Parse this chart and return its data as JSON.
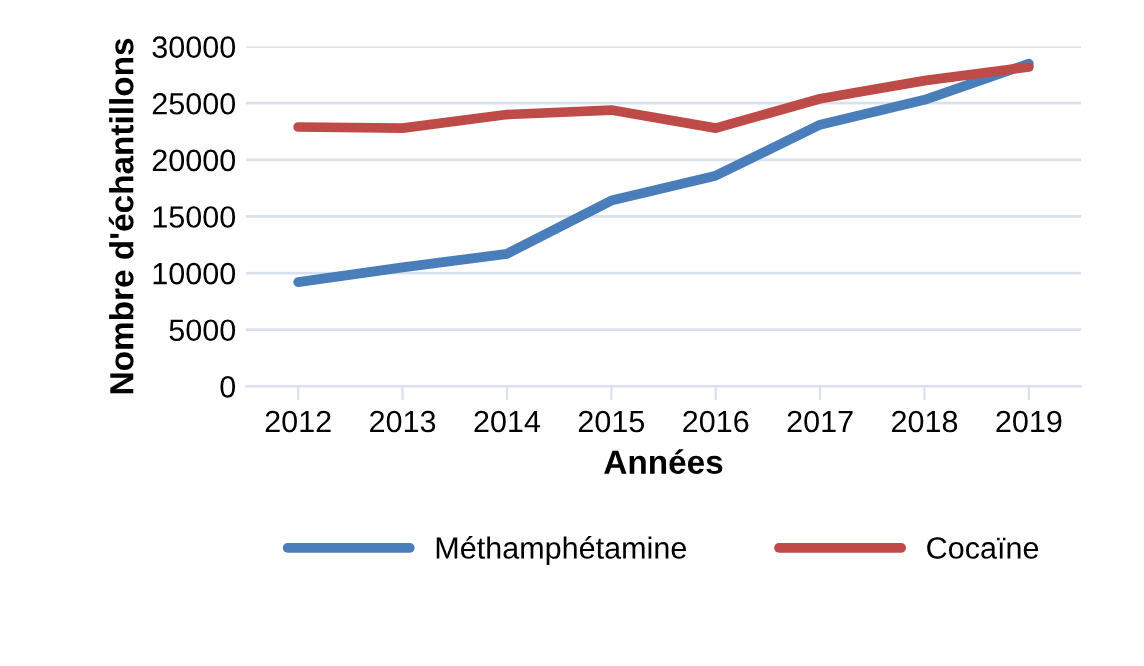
{
  "chart_data": {
    "type": "line",
    "xlabel": "Années",
    "ylabel": "Nombre d'échantillons",
    "categories": [
      "2012",
      "2013",
      "2014",
      "2015",
      "2016",
      "2017",
      "2018",
      "2019"
    ],
    "series": [
      {
        "name": "Méthamphétamine",
        "color": "#4a7ebb",
        "values": [
          9200,
          10500,
          11700,
          16400,
          18600,
          23100,
          25300,
          28500
        ]
      },
      {
        "name": "Cocaïne",
        "color": "#be4b48",
        "values": [
          22900,
          22800,
          24000,
          24400,
          22800,
          25400,
          27000,
          28200
        ]
      }
    ],
    "ylim": [
      0,
      30000
    ],
    "yticks": [
      0,
      5000,
      10000,
      15000,
      20000,
      25000,
      30000
    ],
    "grid": "y",
    "legend": "bottom",
    "marker": "none",
    "line_style": "solid"
  }
}
